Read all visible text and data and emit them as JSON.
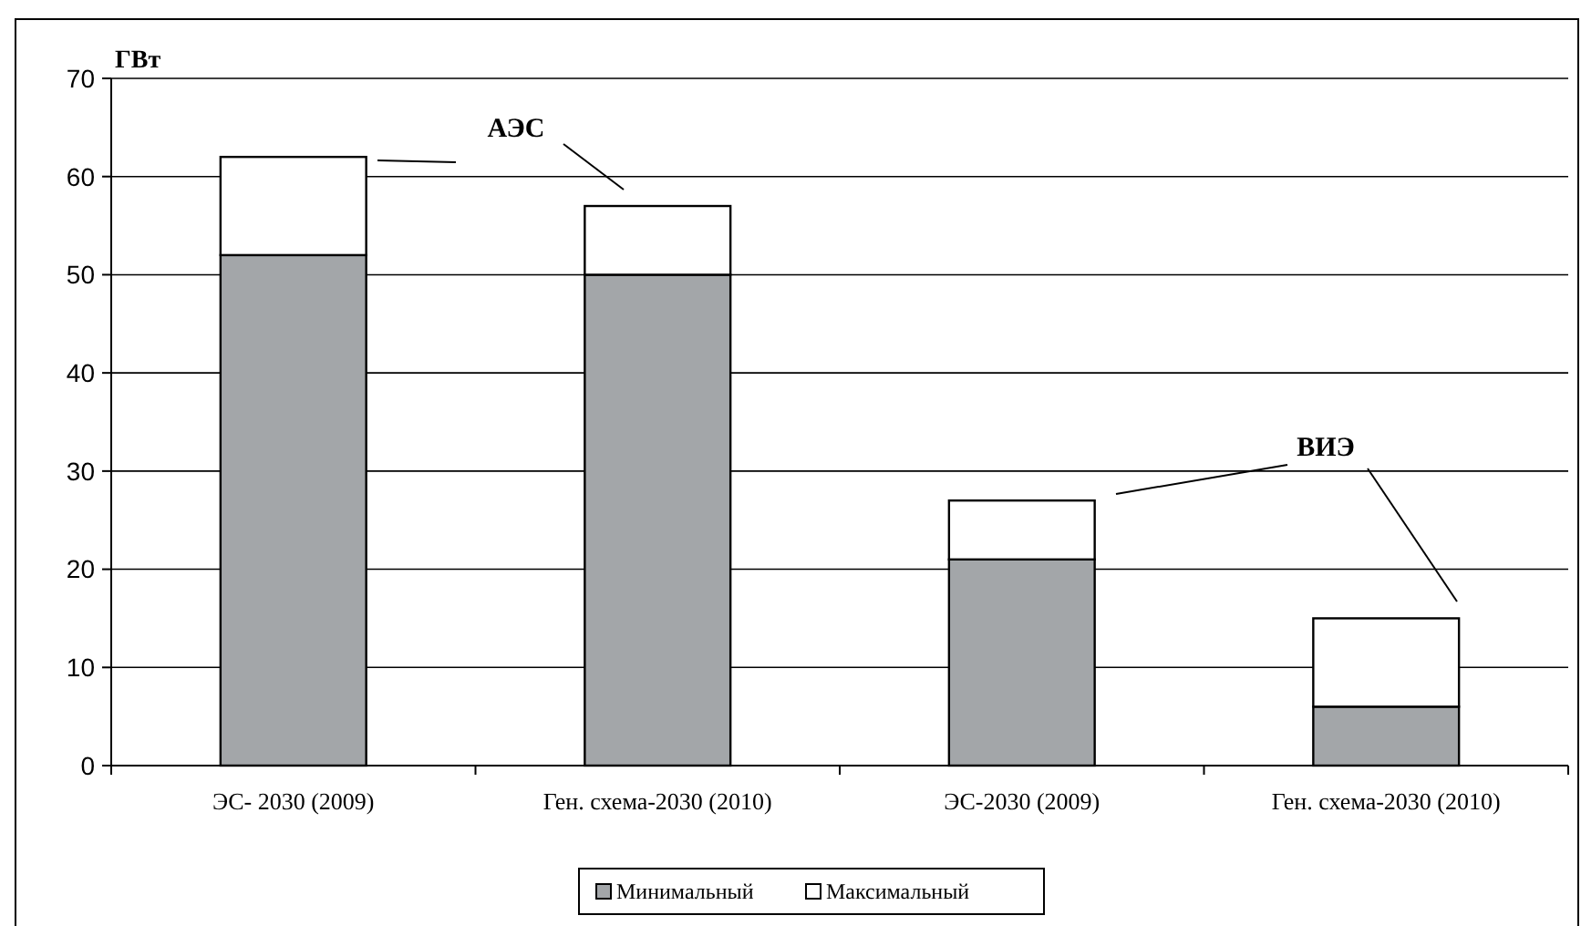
{
  "chart_data": {
    "type": "bar",
    "stacked": true,
    "ylabel": "ГВт",
    "categories": [
      "ЭС- 2030 (2009)",
      "Ген. схема-2030 (2010)",
      "ЭС-2030 (2009)",
      "Ген. схема-2030 (2010)"
    ],
    "series": [
      {
        "name": "Минимальный",
        "color": "#a3a6a9",
        "values": [
          52,
          50,
          21,
          6
        ]
      },
      {
        "name": "Максимальный",
        "color": "#ffffff",
        "values": [
          10,
          7,
          6,
          9
        ]
      }
    ],
    "ylim": [
      0,
      70
    ],
    "yticks": [
      0,
      10,
      20,
      30,
      40,
      50,
      60,
      70
    ],
    "grid": "y",
    "legend": "bottom",
    "annotations": [
      "АЭС",
      "ВИЭ"
    ]
  }
}
